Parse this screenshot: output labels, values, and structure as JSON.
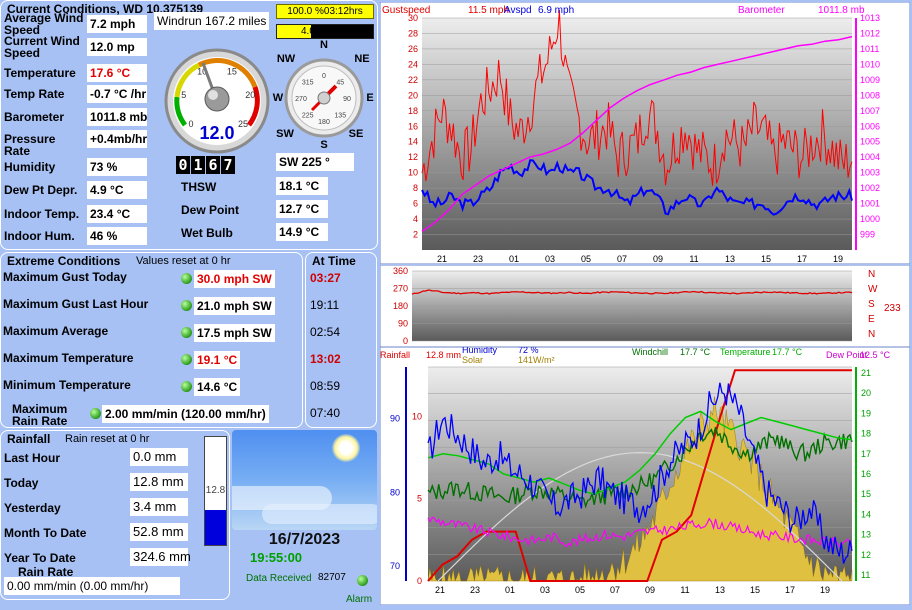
{
  "current": {
    "title": "Current Conditions, WD 10.375139",
    "rows": [
      {
        "label": "Average Wind Speed",
        "value": "7.2 mph"
      },
      {
        "label": "Current Wind Speed",
        "value": "12.0 mp"
      },
      {
        "label": "Temperature",
        "value": "17.6 °C"
      },
      {
        "label": "Temp Rate",
        "value": "-0.7 °C /hr"
      },
      {
        "label": "Barometer",
        "value": "1011.8 mb"
      },
      {
        "label": "Pressure Rate",
        "value": "+0.4mb/hr"
      },
      {
        "label": "Humidity",
        "value": "73 %"
      },
      {
        "label": "Dew Pt Depr.",
        "value": "4.9 °C"
      },
      {
        "label": "Indoor Temp.",
        "value": "23.4 °C"
      },
      {
        "label": "Indoor Hum.",
        "value": "46 %"
      }
    ],
    "windrun": "Windrun 167.2 miles",
    "sun_pct": "100.0 %03:12hrs",
    "et": "4.0 mm ET",
    "speed_gauge": {
      "value": "12.0",
      "ticks": [
        "0",
        "5",
        "10",
        "15",
        "20",
        "25"
      ]
    },
    "compass": {
      "N": "N",
      "NE": "NE",
      "E": "E",
      "SE": "SE",
      "S": "S",
      "SW": "SW",
      "W": "W",
      "NW": "NW",
      "ticks": [
        "315",
        "0",
        "45",
        "90",
        "135",
        "180",
        "225",
        "270"
      ],
      "dir_value": 225
    },
    "counter": [
      "0",
      "1",
      "6",
      "7"
    ],
    "dir_text": "SW  225 °",
    "thsw": {
      "label": "THSW",
      "value": "18.1 °C"
    },
    "dew": {
      "label": "Dew Point",
      "value": "12.7 °C"
    },
    "wet": {
      "label": "Wet Bulb",
      "value": "14.9 °C"
    }
  },
  "extremes": {
    "title": "Extreme Conditions",
    "subtitle": "Values reset at 0 hr",
    "at_time_title": "At Time",
    "rows": [
      {
        "label": "Maximum Gust Today",
        "value": "30.0 mph  SW",
        "time": "03:27",
        "red": true
      },
      {
        "label": "Maximum Gust Last Hour",
        "value": "21.0 mph  SW",
        "time": "19:11",
        "red": false
      },
      {
        "label": "Maximum Average",
        "value": "17.5 mph  SW",
        "time": "02:54",
        "red": false
      },
      {
        "label": "Maximum Temperature",
        "value": "19.1 °C",
        "time": "13:02",
        "red": true
      },
      {
        "label": "Minimum Temperature",
        "value": "14.6 °C",
        "time": "08:59",
        "red": false
      },
      {
        "label": "Maximum Rain Rate",
        "value": "2.00 mm/min (120.00 mm/hr)",
        "time": "07:40",
        "red": false
      }
    ]
  },
  "rain": {
    "title": "Rainfall",
    "subtitle": "Rain reset at 0 hr",
    "rows": [
      {
        "label": "Last Hour",
        "value": "0.0 mm"
      },
      {
        "label": "Today",
        "value": "12.8 mm"
      },
      {
        "label": "Yesterday",
        "value": "3.4 mm"
      },
      {
        "label": "Month To Date",
        "value": "52.8 mm"
      },
      {
        "label": "Year To Date",
        "value": "324.6 mm"
      }
    ],
    "rate_label": "Rain Rate",
    "rate_value": "0.00 mm/min (0.00 mm/hr)",
    "gauge_value": "12.8",
    "gauge_fill": 0.32
  },
  "status": {
    "date": "16/7/2023",
    "time": "19:55:00",
    "data_received_label": "Data Received",
    "data_received_count": "82707",
    "alarm": "Alarm"
  },
  "colors": {
    "panel": "#a7c1f4",
    "red": "#e20000",
    "gust": "#ff0000",
    "avg": "#0000ff",
    "baro": "#ff00ff",
    "humidity": "#ff00ff",
    "windchill": "#008000",
    "temp": "#00cc00",
    "dew": "#cc00cc",
    "solar": "#d6b400"
  },
  "chart_data": [
    {
      "type": "line",
      "legend": [
        "Gustspeed",
        "11.5 mph",
        "Avspd",
        "6.9 mph",
        "19:55",
        "Barometer",
        "1011.8 mb"
      ],
      "x_ticks": [
        "21",
        "23",
        "01",
        "03",
        "05",
        "07",
        "09",
        "11",
        "13",
        "15",
        "17",
        "19"
      ],
      "y_ticks_left": [
        "2",
        "4",
        "6",
        "8",
        "10",
        "12",
        "14",
        "16",
        "18",
        "20",
        "22",
        "24",
        "26",
        "28",
        "30"
      ],
      "y_ticks_right": [
        "999",
        "1000",
        "1001",
        "1002",
        "1003",
        "1004",
        "1005",
        "1006",
        "1007",
        "1008",
        "1009",
        "1010",
        "1011",
        "1012",
        "1013"
      ],
      "ylim_left": [
        0,
        30
      ],
      "ylim_right": [
        998,
        1013
      ],
      "series": [
        {
          "name": "Gustspeed",
          "values": [
            10,
            14,
            18,
            16,
            12,
            13,
            19,
            21,
            23,
            17,
            15,
            18,
            22,
            25,
            30,
            20,
            17,
            14,
            15,
            16,
            12,
            13,
            14,
            18,
            16,
            11,
            14,
            16,
            13,
            12,
            11,
            15,
            14,
            13,
            16,
            15,
            12,
            14,
            13,
            12,
            14,
            15,
            13,
            11,
            12
          ]
        },
        {
          "name": "Avspd",
          "values": [
            8,
            6,
            6,
            7,
            6,
            6,
            7,
            8,
            10,
            11,
            10,
            11,
            11,
            10,
            11,
            10,
            10,
            9,
            8,
            8,
            7,
            6,
            7,
            8,
            7,
            5,
            6,
            7,
            6,
            6,
            8,
            7,
            6,
            6,
            6,
            6,
            5,
            6,
            7,
            7,
            6,
            6,
            7,
            7,
            7
          ]
        },
        {
          "name": "Barometer",
          "values": [
            999.2,
            999.8,
            1000.6,
            1001.6,
            1002.2,
            1002.8,
            1003.2,
            1003.6,
            1004.0,
            1004.2,
            1004.5,
            1004.9,
            1005.6,
            1006.4,
            1007.2,
            1007.8,
            1008.3,
            1008.7,
            1009.0,
            1009.3,
            1009.5,
            1009.8,
            1010.0,
            1010.2,
            1010.4,
            1010.6,
            1010.8,
            1011.0,
            1011.2,
            1011.3,
            1011.5,
            1011.6,
            1011.8
          ]
        }
      ]
    },
    {
      "type": "line",
      "y_ticks": [
        "0",
        "90",
        "180",
        "270",
        "360"
      ],
      "dir_labels": [
        "N",
        "W",
        "S",
        "E",
        "N"
      ],
      "current_dir": "233",
      "ylim": [
        0,
        360
      ],
      "series": [
        {
          "name": "Direction",
          "values": [
            240,
            262,
            250,
            245,
            248,
            244,
            250,
            252,
            248,
            246,
            250,
            244,
            250,
            252,
            248,
            246,
            244,
            250,
            255,
            248,
            246,
            244,
            250,
            252,
            248,
            246,
            244,
            248,
            250
          ]
        }
      ]
    },
    {
      "type": "line",
      "legend": [
        "Rainfall",
        "12.8 mm",
        "Humidity",
        "72 %",
        "Solar",
        "141W/m²",
        "Windchill",
        "17.7 °C",
        "Temperature",
        "17.7 °C",
        "Dew Point",
        "12.5 °C"
      ],
      "x_ticks": [
        "21",
        "23",
        "01",
        "03",
        "05",
        "07",
        "09",
        "11",
        "13",
        "15",
        "17",
        "19"
      ],
      "y_ticks_left_humidity": [
        "70",
        "80",
        "90"
      ],
      "y_ticks_left_rain": [
        "0",
        "5",
        "10"
      ],
      "y_ticks_right": [
        "11",
        "12",
        "13",
        "14",
        "15",
        "16",
        "17",
        "18",
        "19",
        "20",
        "21"
      ],
      "series": [
        {
          "name": "Rainfall",
          "values": [
            0,
            1,
            1.5,
            2.5,
            3,
            3,
            3,
            0,
            0,
            0,
            0,
            0,
            0,
            0,
            0,
            0,
            2.5,
            3,
            4,
            7,
            10,
            12.8,
            12.8,
            12.8,
            12.8,
            12.8,
            12.8,
            12.8,
            12.8,
            12.8
          ]
        },
        {
          "name": "Humidity",
          "values": [
            85,
            90,
            88,
            86,
            84,
            85,
            83,
            82,
            80,
            78,
            79,
            80,
            82,
            80,
            79,
            78,
            80,
            84,
            86,
            88,
            92,
            94,
            91,
            85,
            80,
            78,
            76,
            78,
            74,
            72,
            72
          ]
        },
        {
          "name": "Windchill",
          "values": [
            15.0,
            15.2,
            15.3,
            15.1,
            15.0,
            14.8,
            15.0,
            15.2,
            15.1,
            14.9,
            14.6,
            14.8,
            15.0,
            15.2,
            15.4,
            15.8,
            16.5,
            17.2,
            18.0,
            18.2,
            17.5,
            17.0,
            17.4,
            17.8,
            17.2,
            17.0,
            17.5,
            17.6,
            17.7
          ]
        },
        {
          "name": "Temperature",
          "values": [
            16.8,
            17.0,
            16.9,
            16.7,
            16.5,
            16.0,
            15.8,
            15.6,
            15.8,
            15.5,
            15.2,
            15.0,
            15.3,
            15.6,
            16.2,
            17.0,
            18.0,
            18.8,
            19.1,
            18.6,
            18.2,
            18.5,
            18.8,
            18.6,
            18.4,
            18.2,
            18.0,
            17.8,
            17.7
          ]
        },
        {
          "name": "Dew Point",
          "values": [
            13.8,
            13.6,
            13.4,
            13.2,
            13.0,
            12.8,
            12.7,
            12.9,
            12.6,
            12.8,
            13.0,
            12.9,
            13.1,
            13.2,
            13.3,
            13.5,
            13.6,
            13.4,
            13.2,
            13.0,
            12.9,
            12.8,
            12.7,
            12.6,
            12.5
          ]
        },
        {
          "name": "Solar",
          "values": [
            0,
            0,
            0,
            0,
            0,
            0,
            0,
            0,
            0,
            0,
            0,
            2,
            6,
            10,
            18,
            30,
            46,
            60,
            72,
            80,
            70,
            60,
            48,
            36,
            24,
            12,
            4,
            2,
            1
          ]
        }
      ]
    }
  ]
}
